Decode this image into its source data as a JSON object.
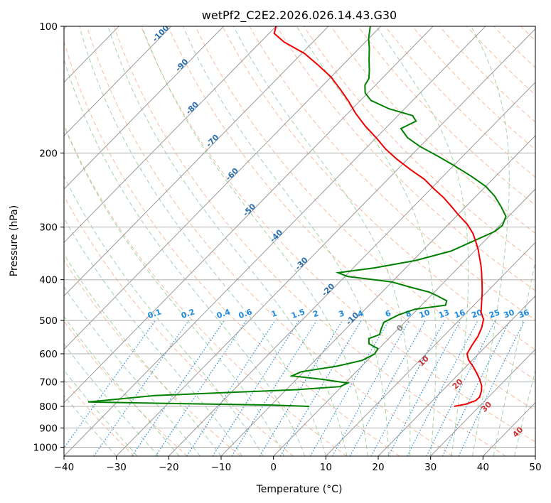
{
  "colors": {
    "temperature": "#ee0000",
    "dewpoint": "#008000",
    "isotherm": "#9a9a9a",
    "dry_adiabat": "#f4a582",
    "moist_adiabat": "#8cc88c",
    "mixing_ratio": "#1f8be0",
    "isotherm_label": "#2a6fb0",
    "moist_label": "#c83232",
    "zero_label": "#808080"
  },
  "chart_data": {
    "type": "line",
    "chart_kind": "skew-T log-P",
    "title": "wetPf2_C2E2.2026.026.14.43.G30",
    "xlabel": "Temperature (°C)",
    "ylabel": "Pressure (hPa)",
    "xlim": [
      -40,
      50
    ],
    "ylim": [
      1050,
      100
    ],
    "y_scale": "log",
    "grid": true,
    "x_ticks": [
      -40,
      -30,
      -20,
      -10,
      0,
      10,
      20,
      30,
      40,
      50
    ],
    "x_tick_labels": [
      "−40",
      "−30",
      "−20",
      "−10",
      "0",
      "10",
      "20",
      "30",
      "40",
      "50"
    ],
    "y_ticks": [
      100,
      200,
      300,
      400,
      500,
      600,
      700,
      800,
      900,
      1000
    ],
    "y_tick_labels": [
      "100",
      "200",
      "300",
      "400",
      "500",
      "600",
      "700",
      "800",
      "900",
      "1000"
    ],
    "series": [
      {
        "key": "temperature",
        "points": [
          [
            25.2,
            800
          ],
          [
            27.0,
            790
          ],
          [
            28.2,
            775
          ],
          [
            28.3,
            760
          ],
          [
            27.5,
            735
          ],
          [
            26.6,
            715
          ],
          [
            25.0,
            690
          ],
          [
            23.5,
            670
          ],
          [
            21.5,
            645
          ],
          [
            19.2,
            620
          ],
          [
            17.8,
            600
          ],
          [
            17.2,
            575
          ],
          [
            16.6,
            545
          ],
          [
            15.7,
            520
          ],
          [
            14.5,
            497
          ],
          [
            12.7,
            478
          ],
          [
            11.6,
            462
          ],
          [
            10.4,
            445
          ],
          [
            8.9,
            425
          ],
          [
            7.2,
            405
          ],
          [
            5.4,
            385
          ],
          [
            3.7,
            368
          ],
          [
            2.0,
            353
          ],
          [
            0.5,
            340
          ],
          [
            -1.5,
            325
          ],
          [
            -3.7,
            310
          ],
          [
            -6.5,
            295
          ],
          [
            -10.0,
            280
          ],
          [
            -13.0,
            267
          ],
          [
            -16.0,
            255
          ],
          [
            -19.5,
            243
          ],
          [
            -23.0,
            231
          ],
          [
            -27.5,
            219
          ],
          [
            -32.0,
            207
          ],
          [
            -36.0,
            196
          ],
          [
            -40.0,
            184
          ],
          [
            -44.5,
            172
          ],
          [
            -48.5,
            161
          ],
          [
            -52.0,
            151
          ],
          [
            -56.0,
            141
          ],
          [
            -60.0,
            132
          ],
          [
            -64.5,
            124
          ],
          [
            -69.5,
            116
          ],
          [
            -75.5,
            109
          ],
          [
            -79.0,
            104
          ],
          [
            -80.0,
            100
          ]
        ]
      },
      {
        "key": "dewpoint",
        "points": [
          [
            -2.5,
            800
          ],
          [
            -10.2,
            794
          ],
          [
            -30.5,
            787
          ],
          [
            -45.5,
            781
          ],
          [
            -34.0,
            754
          ],
          [
            -20.0,
            741
          ],
          [
            -8.0,
            730
          ],
          [
            -0.3,
            718
          ],
          [
            0.5,
            704
          ],
          [
            -5.0,
            690
          ],
          [
            -11.5,
            677
          ],
          [
            -10.5,
            662
          ],
          [
            -4.7,
            642
          ],
          [
            -1.0,
            622
          ],
          [
            0.2,
            601
          ],
          [
            -0.2,
            583
          ],
          [
            -2.8,
            568
          ],
          [
            -3.8,
            552
          ],
          [
            -2.5,
            540
          ],
          [
            -3.2,
            525
          ],
          [
            -4.0,
            505
          ],
          [
            -2.6,
            485
          ],
          [
            -0.5,
            470
          ],
          [
            4.6,
            460
          ],
          [
            4.0,
            449
          ],
          [
            1.5,
            438
          ],
          [
            -1.0,
            428
          ],
          [
            -5.0,
            418
          ],
          [
            -10.0,
            405
          ],
          [
            -19.5,
            393
          ],
          [
            -22.0,
            385
          ],
          [
            -16.0,
            375
          ],
          [
            -9.5,
            360
          ],
          [
            -4.5,
            342
          ],
          [
            -2.0,
            323
          ],
          [
            0.2,
            307
          ],
          [
            0.5,
            297
          ],
          [
            -0.5,
            283
          ],
          [
            -3.3,
            268
          ],
          [
            -6.5,
            253
          ],
          [
            -10.0,
            240
          ],
          [
            -14.7,
            227
          ],
          [
            -20.0,
            214
          ],
          [
            -25.0,
            203
          ],
          [
            -30.0,
            193
          ],
          [
            -34.0,
            184
          ],
          [
            -37.0,
            175
          ],
          [
            -35.5,
            168
          ],
          [
            -37.2,
            163
          ],
          [
            -43.0,
            157
          ],
          [
            -48.0,
            150
          ],
          [
            -50.5,
            144
          ],
          [
            -52.0,
            138
          ],
          [
            -52.5,
            133
          ],
          [
            -54.0,
            127
          ],
          [
            -56.0,
            120
          ],
          [
            -58.0,
            113
          ],
          [
            -60.0,
            107
          ],
          [
            -62.0,
            100
          ]
        ]
      }
    ],
    "isotherm_labels": [
      {
        "text": "-100",
        "t": -100,
        "p": 105
      },
      {
        "text": "-90",
        "t": -90,
        "p": 125
      },
      {
        "text": "-80",
        "t": -80,
        "p": 158
      },
      {
        "text": "-70",
        "t": -70,
        "p": 189
      },
      {
        "text": "-60",
        "t": -60,
        "p": 227
      },
      {
        "text": "-50",
        "t": -50,
        "p": 276
      },
      {
        "text": "-40",
        "t": -40,
        "p": 318
      },
      {
        "text": "-30",
        "t": -30,
        "p": 370
      },
      {
        "text": "-20",
        "t": -20,
        "p": 427
      },
      {
        "text": "-10",
        "t": -10,
        "p": 500
      }
    ],
    "mixing_ratio_labels": [
      "0.1",
      "0.2",
      "0.4",
      "0.6",
      "1",
      "1.5",
      "2",
      "3",
      "4",
      "6",
      "8",
      "10",
      "13",
      "16",
      "20",
      "25",
      "30",
      "36"
    ],
    "mixing_ratio_values": [
      0.1,
      0.2,
      0.4,
      0.6,
      1,
      1.5,
      2,
      3,
      4,
      6,
      8,
      10,
      13,
      16,
      20,
      25,
      30,
      36
    ],
    "moist_adiabat_labels": [
      {
        "text": "0",
        "t": 24.5,
        "p": 527
      },
      {
        "text": "10",
        "t": 29.0,
        "p": 630
      },
      {
        "text": "20",
        "t": 35.5,
        "p": 715
      },
      {
        "text": "30",
        "t": 41.0,
        "p": 810
      },
      {
        "text": "40",
        "t": 47.0,
        "p": 930
      }
    ]
  }
}
